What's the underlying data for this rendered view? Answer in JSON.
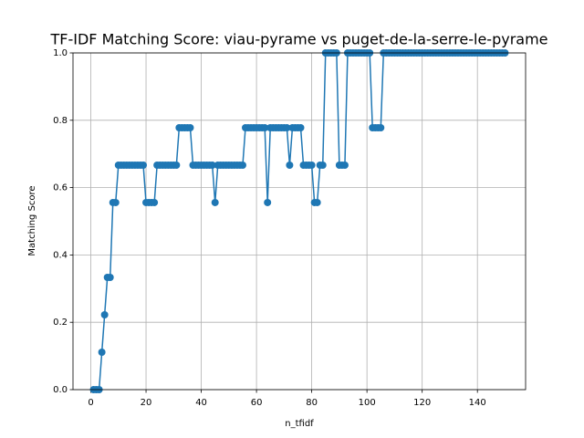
{
  "chart_data": {
    "type": "line",
    "title": "TF-IDF Matching Score: viau-pyrame vs puget-de-la-serre-le-pyrame",
    "xlabel": "n_tfidf",
    "ylabel": "Matching Score",
    "x": [
      1,
      2,
      3,
      4,
      5,
      6,
      7,
      8,
      9,
      10,
      11,
      12,
      13,
      14,
      15,
      16,
      17,
      18,
      19,
      20,
      21,
      22,
      23,
      24,
      25,
      26,
      27,
      28,
      29,
      30,
      31,
      32,
      33,
      34,
      35,
      36,
      37,
      38,
      39,
      40,
      41,
      42,
      43,
      44,
      45,
      46,
      47,
      48,
      49,
      50,
      51,
      52,
      53,
      54,
      55,
      56,
      57,
      58,
      59,
      60,
      61,
      62,
      63,
      64,
      65,
      66,
      67,
      68,
      69,
      70,
      71,
      72,
      73,
      74,
      75,
      76,
      77,
      78,
      79,
      80,
      81,
      82,
      83,
      84,
      85,
      86,
      87,
      88,
      89,
      90,
      91,
      92,
      93,
      94,
      95,
      96,
      97,
      98,
      99,
      100,
      101,
      102,
      103,
      104,
      105,
      106,
      107,
      108,
      109,
      110,
      111,
      112,
      113,
      114,
      115,
      116,
      117,
      118,
      119,
      120,
      121,
      122,
      123,
      124,
      125,
      126,
      127,
      128,
      129,
      130,
      131,
      132,
      133,
      134,
      135,
      136,
      137,
      138,
      139,
      140,
      141,
      142,
      143,
      144,
      145,
      146,
      147,
      148,
      149,
      150
    ],
    "series": [
      {
        "name": "Matching Score",
        "color": "#1f77b4",
        "values": [
          0,
          0,
          0,
          0.1111,
          0.2222,
          0.3333,
          0.3333,
          0.5556,
          0.5556,
          0.6667,
          0.6667,
          0.6667,
          0.6667,
          0.6667,
          0.6667,
          0.6667,
          0.6667,
          0.6667,
          0.6667,
          0.5556,
          0.5556,
          0.5556,
          0.5556,
          0.6667,
          0.6667,
          0.6667,
          0.6667,
          0.6667,
          0.6667,
          0.6667,
          0.6667,
          0.7778,
          0.7778,
          0.7778,
          0.7778,
          0.7778,
          0.6667,
          0.6667,
          0.6667,
          0.6667,
          0.6667,
          0.6667,
          0.6667,
          0.6667,
          0.5556,
          0.6667,
          0.6667,
          0.6667,
          0.6667,
          0.6667,
          0.6667,
          0.6667,
          0.6667,
          0.6667,
          0.6667,
          0.7778,
          0.7778,
          0.7778,
          0.7778,
          0.7778,
          0.7778,
          0.7778,
          0.7778,
          0.5556,
          0.7778,
          0.7778,
          0.7778,
          0.7778,
          0.7778,
          0.7778,
          0.7778,
          0.6667,
          0.7778,
          0.7778,
          0.7778,
          0.7778,
          0.6667,
          0.6667,
          0.6667,
          0.6667,
          0.5556,
          0.5556,
          0.6667,
          0.6667,
          1,
          1,
          1,
          1,
          1,
          0.6667,
          0.6667,
          0.6667,
          1,
          1,
          1,
          1,
          1,
          1,
          1,
          1,
          1,
          0.7778,
          0.7778,
          0.7778,
          0.7778,
          1,
          1,
          1,
          1,
          1,
          1,
          1,
          1,
          1,
          1,
          1,
          1,
          1,
          1,
          1,
          1,
          1,
          1,
          1,
          1,
          1,
          1,
          1,
          1,
          1,
          1,
          1,
          1,
          1,
          1,
          1,
          1,
          1,
          1,
          1,
          1,
          1,
          1,
          1,
          1,
          1,
          1,
          1,
          1,
          1
        ]
      }
    ],
    "xlim": [
      -6.45,
      157.45
    ],
    "ylim": [
      0,
      1
    ],
    "xticks": [
      0,
      20,
      40,
      60,
      80,
      100,
      120,
      140
    ],
    "yticks": [
      {
        "value": 0,
        "label": "0.0"
      },
      0.2,
      0.4,
      0.6,
      0.8,
      {
        "value": 1,
        "label": "1.0"
      }
    ],
    "grid": true
  }
}
